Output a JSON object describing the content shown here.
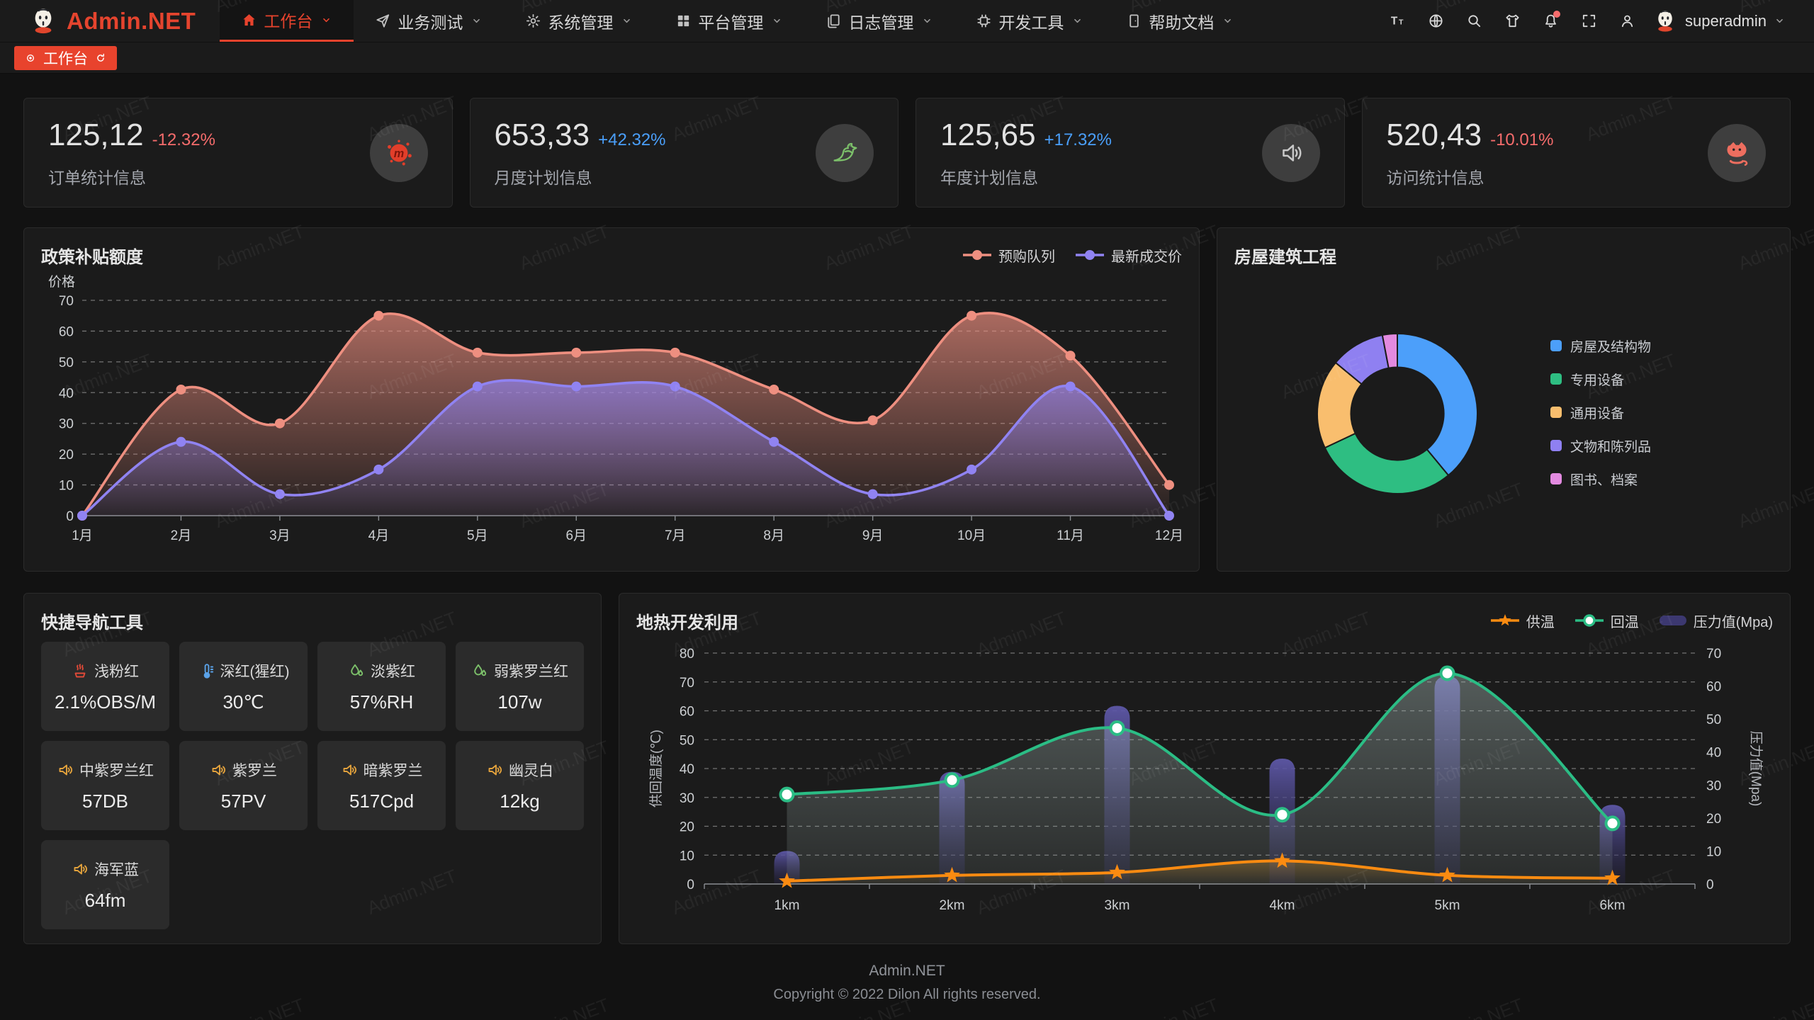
{
  "watermark": {
    "text": "Admin.NET"
  },
  "colors": {
    "accent": "#E8432D",
    "up": "#4A9FFA",
    "down": "#F56C6C"
  },
  "header": {
    "logo_text": "Admin.NET",
    "menu": [
      {
        "label": "工作台",
        "icon": "home-icon",
        "active": true
      },
      {
        "label": "业务测试",
        "icon": "send-icon",
        "active": false
      },
      {
        "label": "系统管理",
        "icon": "gear-icon",
        "active": false
      },
      {
        "label": "平台管理",
        "icon": "grid-icon",
        "active": false
      },
      {
        "label": "日志管理",
        "icon": "log-icon",
        "active": false
      },
      {
        "label": "开发工具",
        "icon": "cpu-icon",
        "active": false
      },
      {
        "label": "帮助文档",
        "icon": "doc-icon",
        "active": false
      }
    ],
    "toolbar_icons": [
      "font-size-icon",
      "language-icon",
      "search-icon",
      "theme-icon",
      "bell-icon",
      "fullscreen-icon",
      "person-icon"
    ],
    "notification_badge": true,
    "username": "superadmin"
  },
  "tabbar": {
    "tabs": [
      {
        "label": "工作台",
        "active": true
      }
    ]
  },
  "stats": [
    {
      "value": "125,12",
      "delta": "-12.32%",
      "direction": "down",
      "label": "订单统计信息",
      "icon": "meetup-icon"
    },
    {
      "value": "653,33",
      "delta": "+42.32%",
      "direction": "up",
      "label": "月度计划信息",
      "icon": "dove-icon"
    },
    {
      "value": "125,65",
      "delta": "+17.32%",
      "direction": "up",
      "label": "年度计划信息",
      "icon": "speaker-icon"
    },
    {
      "value": "520,43",
      "delta": "-10.01%",
      "direction": "down",
      "label": "访问统计信息",
      "icon": "cat-icon"
    }
  ],
  "chart_data": [
    {
      "id": "subsidy",
      "type": "area",
      "title": "政策补贴额度",
      "ylabel": "价格",
      "categories": [
        "1月",
        "2月",
        "3月",
        "4月",
        "5月",
        "6月",
        "7月",
        "8月",
        "9月",
        "10月",
        "11月",
        "12月"
      ],
      "ylim": [
        0,
        70
      ],
      "ytick": 10,
      "grid": "dashed",
      "legend_position": "top-right",
      "series": [
        {
          "name": "预购队列",
          "color": "#EE8F80",
          "values": [
            0,
            41,
            30,
            65,
            53,
            53,
            53,
            41,
            31,
            65,
            52,
            10
          ]
        },
        {
          "name": "最新成交价",
          "color": "#9083F2",
          "values": [
            0,
            24,
            7,
            15,
            42,
            42,
            42,
            24,
            7,
            15,
            42,
            0
          ]
        }
      ]
    },
    {
      "id": "building",
      "type": "pie",
      "title": "房屋建筑工程",
      "inner_radius_ratio": 0.58,
      "legend_position": "right",
      "segments": [
        {
          "label": "房屋及结构物",
          "color": "#4C9FFA",
          "value": 39
        },
        {
          "label": "专用设备",
          "color": "#2EBE82",
          "value": 29
        },
        {
          "label": "通用设备",
          "color": "#F9BE6E",
          "value": 18
        },
        {
          "label": "文物和陈列品",
          "color": "#8F80F1",
          "value": 11
        },
        {
          "label": "图书、档案",
          "color": "#E38AE0",
          "value": 3
        }
      ]
    },
    {
      "id": "geothermal",
      "type": "mixed",
      "title": "地热开发利用",
      "categories": [
        "1km",
        "2km",
        "3km",
        "4km",
        "5km",
        "6km"
      ],
      "left_axis": {
        "name": "供回温度(℃)",
        "min": 0,
        "max": 80,
        "tick": 10
      },
      "right_axis": {
        "name": "压力值(Mpa)",
        "min": 0,
        "max": 70,
        "tick": 10
      },
      "legend_order": [
        "供温",
        "回温",
        "压力值(Mpa)"
      ],
      "series": [
        {
          "name": "压力值(Mpa)",
          "type": "bar",
          "axis": "right",
          "color": "#514B8F",
          "values": [
            10,
            34,
            54,
            38,
            63,
            24
          ]
        },
        {
          "name": "回温",
          "type": "line",
          "axis": "left",
          "marker": "circle",
          "color": "#2BBD85",
          "values": [
            31,
            36,
            54,
            24,
            73,
            21
          ]
        },
        {
          "name": "供温",
          "type": "line",
          "axis": "left",
          "marker": "star",
          "color": "#FB8B11",
          "values": [
            1,
            3,
            4,
            8,
            3,
            2
          ]
        }
      ]
    }
  ],
  "quicknav": {
    "title": "快捷导航工具",
    "items": [
      {
        "icon": "steam-icon",
        "icon_color": "#e04a38",
        "name": "浅粉红",
        "value": "2.1%OBS/M"
      },
      {
        "icon": "thermometer-icon",
        "icon_color": "#5aa2e8",
        "name": "深红(猩红)",
        "value": "30℃"
      },
      {
        "icon": "drop-icon",
        "icon_color": "#7cc06a",
        "name": "淡紫红",
        "value": "57%RH"
      },
      {
        "icon": "drop-icon",
        "icon_color": "#7cc06a",
        "name": "弱紫罗兰红",
        "value": "107w"
      },
      {
        "icon": "volume-icon",
        "icon_color": "#e3a23c",
        "name": "中紫罗兰红",
        "value": "57DB"
      },
      {
        "icon": "volume-icon",
        "icon_color": "#e3a23c",
        "name": "紫罗兰",
        "value": "57PV"
      },
      {
        "icon": "volume-icon",
        "icon_color": "#e3a23c",
        "name": "暗紫罗兰",
        "value": "517Cpd"
      },
      {
        "icon": "volume-icon",
        "icon_color": "#e3a23c",
        "name": "幽灵白",
        "value": "12kg"
      },
      {
        "icon": "volume-icon",
        "icon_color": "#e3a23c",
        "name": "海军蓝",
        "value": "64fm"
      }
    ]
  },
  "footer": {
    "line1": "Admin.NET",
    "line2": "Copyright © 2022 Dilon All rights reserved."
  }
}
